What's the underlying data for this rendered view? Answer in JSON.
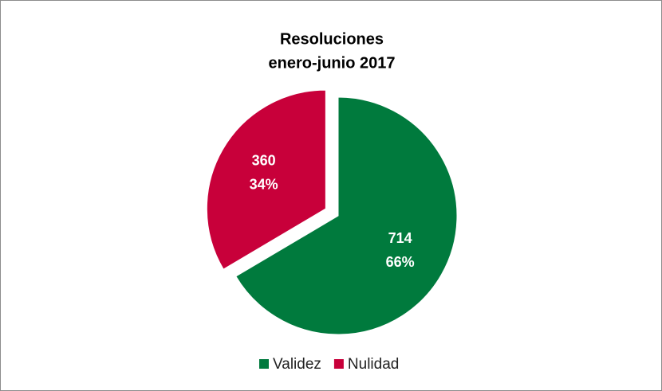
{
  "chart_data": {
    "type": "pie",
    "title": [
      "Resoluciones",
      "enero-junio 2017"
    ],
    "categories": [
      "Validez",
      "Nulidad"
    ],
    "values": [
      714,
      360
    ],
    "percent_labels": [
      "66%",
      "34%"
    ],
    "colors": [
      "#007a3d",
      "#c8003a"
    ],
    "exploded": [
      false,
      true
    ],
    "legend": "bottom"
  }
}
